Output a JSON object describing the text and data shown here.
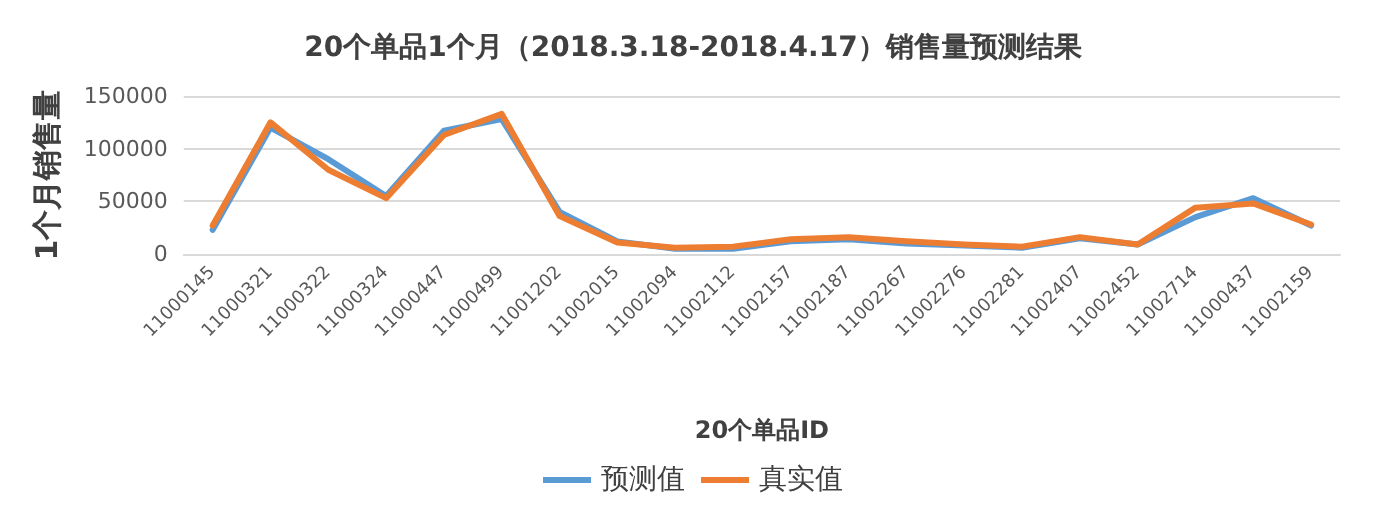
{
  "chart_data": {
    "type": "line",
    "title": "20个单品1个月（2018.3.18-2018.4.17）销售量预测结果",
    "xlabel": "20个单品ID",
    "ylabel": "1个月销售量",
    "categories": [
      "11000145",
      "11000321",
      "11000322",
      "11000324",
      "11000447",
      "11000499",
      "11001202",
      "11002015",
      "11002094",
      "11002112",
      "11002157",
      "11002187",
      "11002267",
      "11002276",
      "11002281",
      "11002407",
      "11002452",
      "11002714",
      "11000437",
      "11002159"
    ],
    "series": [
      {
        "name": "预测值",
        "color": "#5b9bd5",
        "values": [
          23000,
          120000,
          90000,
          55000,
          117000,
          128000,
          40000,
          12000,
          5000,
          5000,
          12000,
          14000,
          10000,
          8000,
          6000,
          15000,
          9000,
          35000,
          53000,
          27000
        ]
      },
      {
        "name": "真实值",
        "color": "#ed7d31",
        "values": [
          27000,
          125000,
          80000,
          53000,
          113000,
          133000,
          36000,
          11000,
          6000,
          7000,
          14000,
          16000,
          12000,
          9000,
          7000,
          16000,
          9000,
          44000,
          48000,
          28000
        ]
      }
    ],
    "ylim": [
      0,
      150000
    ],
    "yticks": [
      0,
      50000,
      100000,
      150000
    ],
    "grid": "y",
    "legend": "bottom",
    "marker": "none",
    "line_style": "solid"
  }
}
